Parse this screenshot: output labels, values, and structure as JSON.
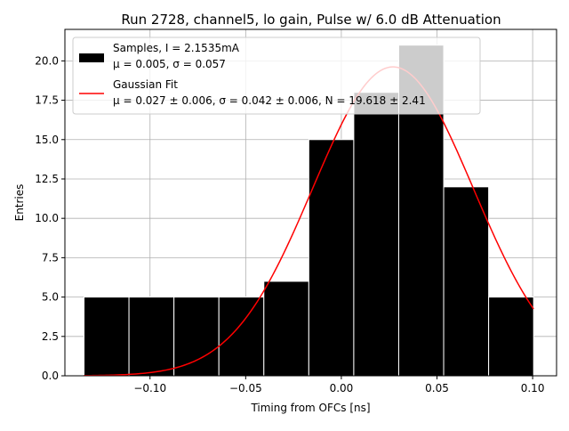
{
  "chart_data": {
    "type": "bar",
    "title": "Run 2728, channel5, lo gain, Pulse w/ 6.0 dB Attenuation",
    "xlabel": "Timing from OFCs [ns]",
    "ylabel": "Entries",
    "xlim": [
      -0.1445,
      0.1125
    ],
    "ylim": [
      0,
      22
    ],
    "grid": true,
    "legend_position": "top-left",
    "xticks": [
      -0.1,
      -0.05,
      0.0,
      0.05,
      0.1
    ],
    "xtick_labels": [
      "−0.10",
      "−0.05",
      "0.00",
      "0.05",
      "0.10"
    ],
    "yticks": [
      0,
      2.5,
      5,
      7.5,
      10,
      12.5,
      15,
      17.5,
      20
    ],
    "ytick_labels": [
      "0.0",
      "2.5",
      "5.0",
      "7.5",
      "10.0",
      "12.5",
      "15.0",
      "17.5",
      "20.0"
    ],
    "histogram": {
      "bin_edges": [
        -0.1345,
        -0.111,
        -0.0875,
        -0.064,
        -0.0405,
        -0.017,
        0.0065,
        0.03,
        0.0535,
        0.077,
        0.1005
      ],
      "counts": [
        5,
        5,
        5,
        5,
        6,
        15,
        18,
        21,
        12,
        5
      ],
      "color": "#000000",
      "edge_color": "#ffffff"
    },
    "gaussian_fit": {
      "mu": 0.027,
      "sigma": 0.042,
      "N": 19.618,
      "x_range": [
        -0.1345,
        0.1005
      ],
      "color": "#ff0000"
    },
    "legend": [
      {
        "kind": "patch",
        "color": "#000000",
        "line1": "Samples, I = 2.1535mA",
        "line2": "μ = 0.005, σ = 0.057"
      },
      {
        "kind": "line",
        "color": "#ff0000",
        "line1": "Gaussian Fit",
        "line2": "μ = 0.027 ± 0.006, σ = 0.042 ± 0.006, N = 19.618 ± 2.41"
      }
    ]
  }
}
